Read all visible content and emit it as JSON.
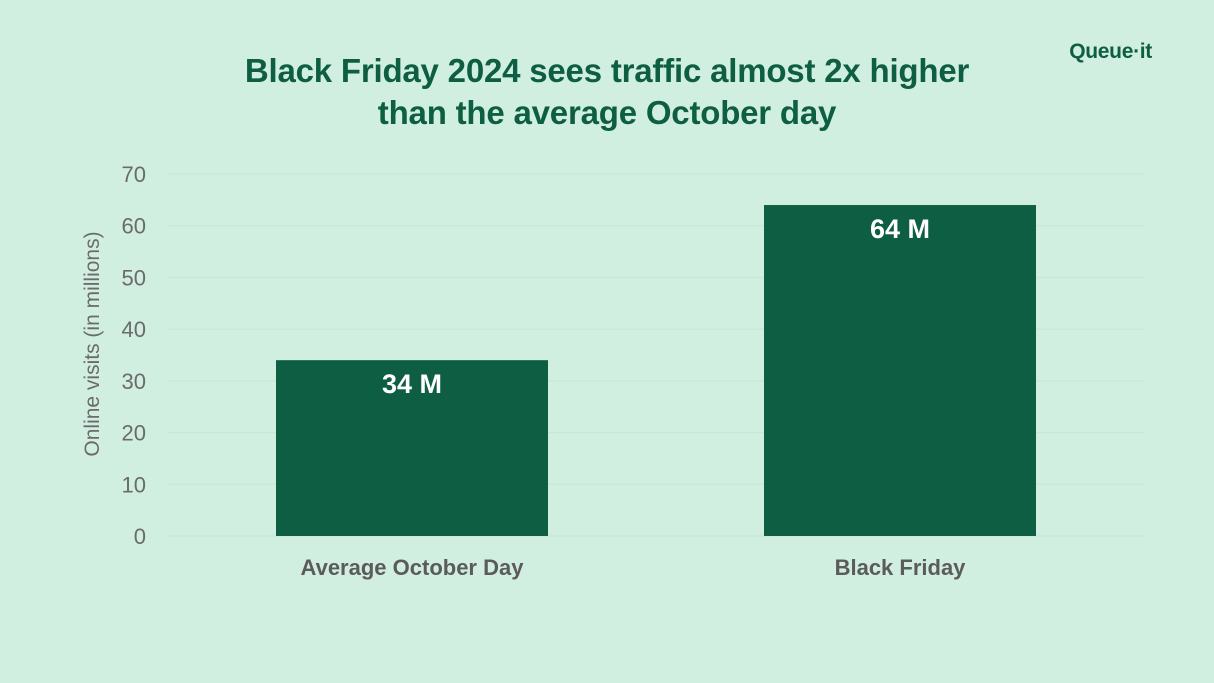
{
  "brand": {
    "logo_text": "Queue·it"
  },
  "colors": {
    "background": "#d1efe1",
    "bar": "#0d5e42",
    "title": "#0d5e42",
    "gridline": "#c2e6d5",
    "tick_text": "#6b6b6b"
  },
  "chart_data": {
    "type": "bar",
    "title_lines": [
      "Black Friday 2024 sees traffic almost 2x higher",
      "than the average October day"
    ],
    "xlabel": "",
    "ylabel": "Online visits (in millions)",
    "categories": [
      "Average October Day",
      "Black Friday"
    ],
    "values": [
      34,
      64
    ],
    "data_labels": [
      "34 M",
      "64 M"
    ],
    "ylim": [
      0,
      70
    ],
    "yticks": [
      0,
      10,
      20,
      30,
      40,
      50,
      60,
      70
    ],
    "grid": true,
    "legend": "none"
  }
}
